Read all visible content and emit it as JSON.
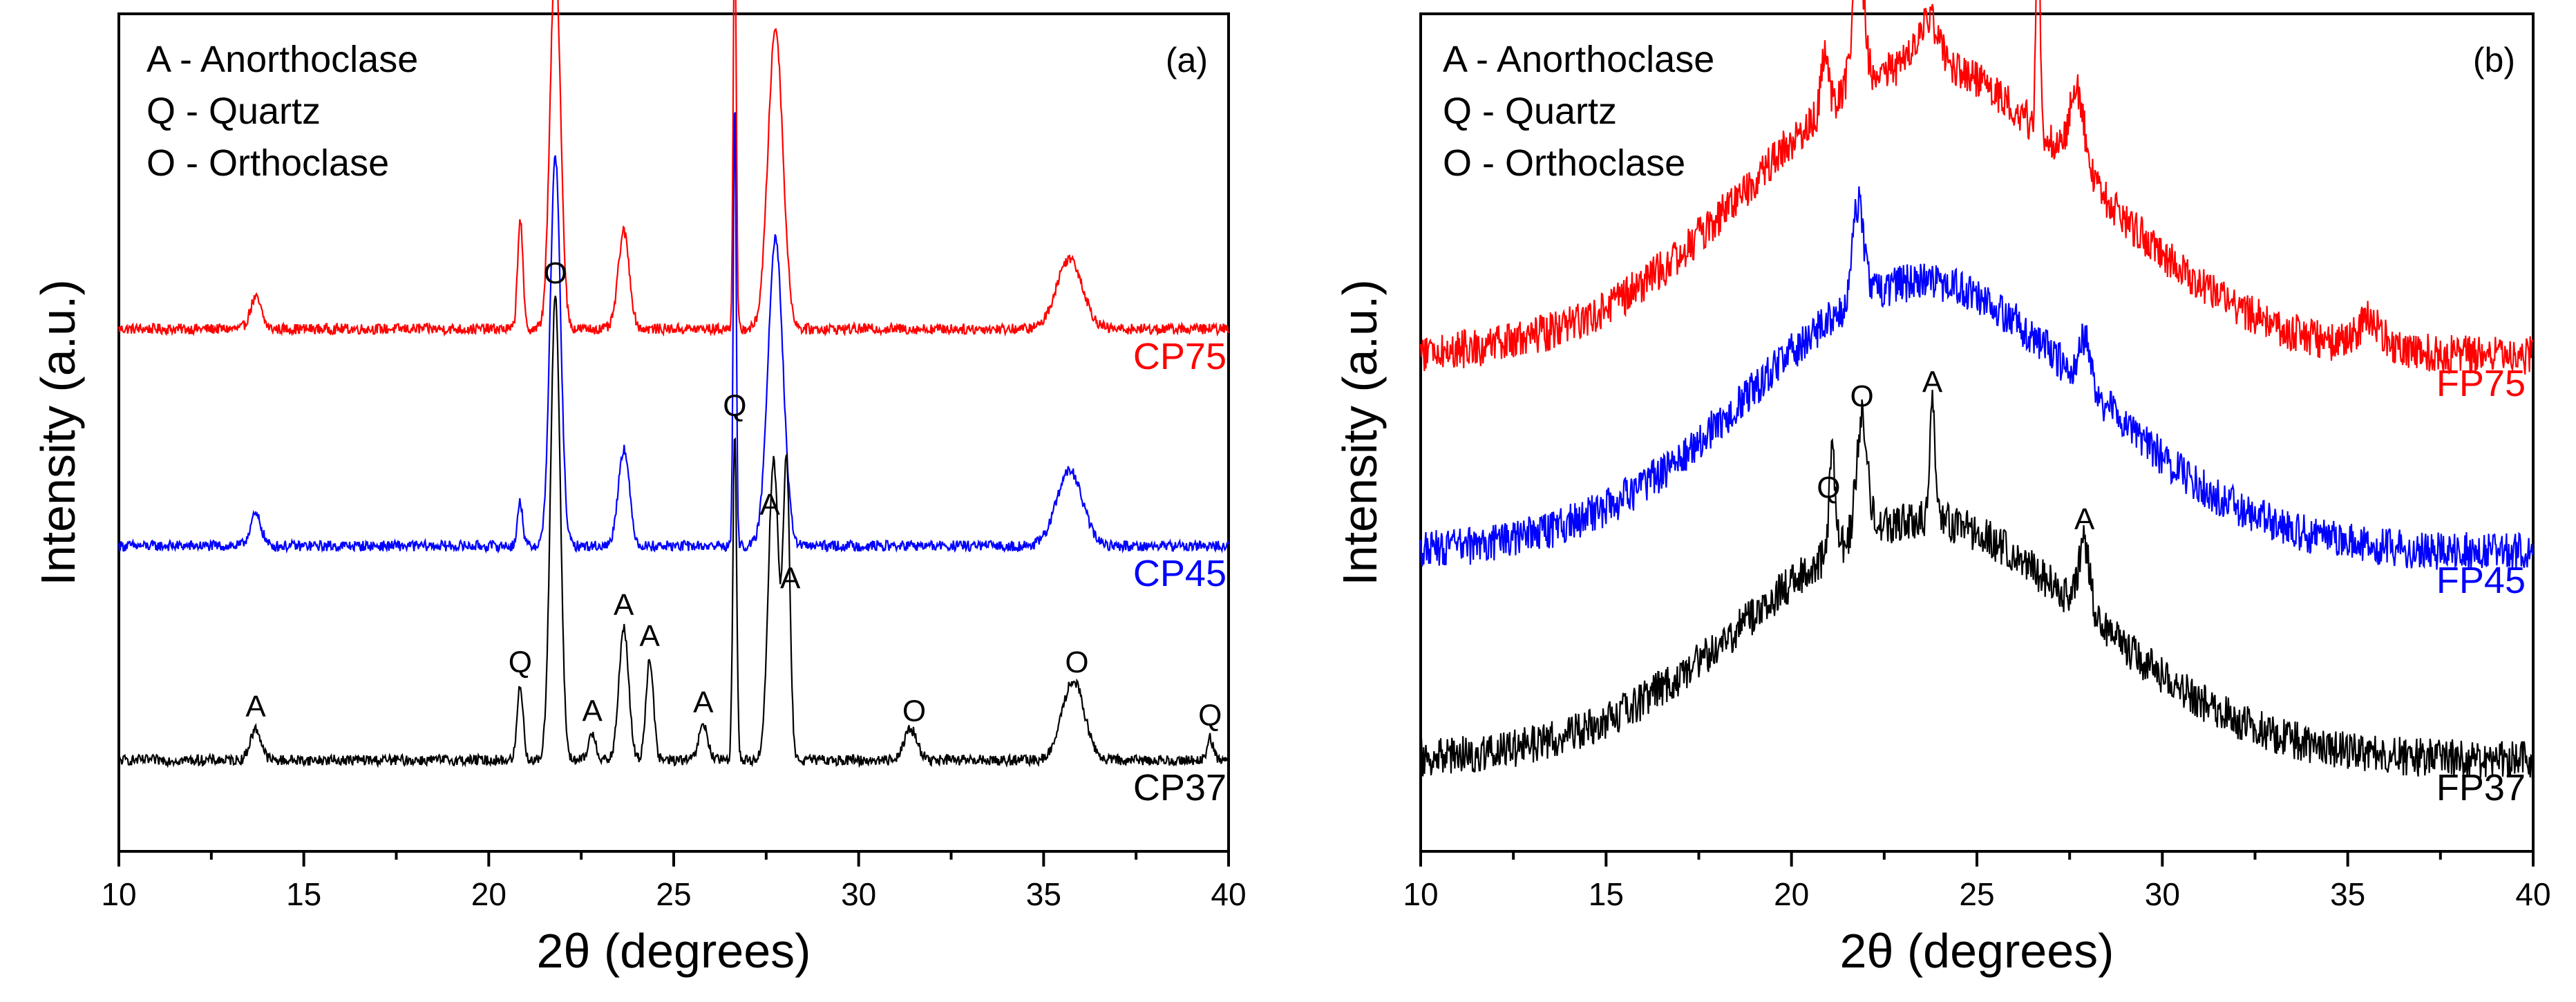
{
  "chart_data": [
    {
      "panel": "(a)",
      "type": "line",
      "xlabel": "2θ (degrees)",
      "ylabel": "Intensity (a.u.)",
      "xlim": [
        10,
        40
      ],
      "xticks": [
        10,
        15,
        20,
        25,
        30,
        35,
        40
      ],
      "legend": [
        "A - Anorthoclase",
        "Q - Quartz",
        "O - Orthoclase"
      ],
      "series": [
        {
          "name": "CP75",
          "color": "#ff0000",
          "baseline": 0.0,
          "offset": 2.05,
          "noise": 0.012,
          "peaks": [
            {
              "x": 13.7,
              "h": 0.07,
              "w": 0.15
            },
            {
              "x": 20.85,
              "h": 0.25,
              "w": 0.07
            },
            {
              "x": 21.8,
              "h": 0.85,
              "w": 0.14
            },
            {
              "x": 23.65,
              "h": 0.22,
              "w": 0.15
            },
            {
              "x": 26.65,
              "h": 0.95,
              "w": 0.04
            },
            {
              "x": 27.75,
              "h": 0.68,
              "w": 0.2
            },
            {
              "x": 35.7,
              "h": 0.16,
              "w": 0.35
            }
          ]
        },
        {
          "name": "CP45",
          "color": "#0000ff",
          "offset": 1.0,
          "noise": 0.012,
          "peaks": [
            {
              "x": 13.7,
              "h": 0.07,
              "w": 0.15
            },
            {
              "x": 20.85,
              "h": 0.1,
              "w": 0.07
            },
            {
              "x": 21.8,
              "h": 0.88,
              "w": 0.14
            },
            {
              "x": 23.65,
              "h": 0.22,
              "w": 0.15
            },
            {
              "x": 26.65,
              "h": 1.0,
              "w": 0.04
            },
            {
              "x": 27.75,
              "h": 0.7,
              "w": 0.2
            },
            {
              "x": 35.7,
              "h": 0.17,
              "w": 0.35
            }
          ]
        },
        {
          "name": "CP37",
          "color": "#000000",
          "offset": 0.0,
          "noise": 0.012,
          "peaks": [
            {
              "x": 13.7,
              "h": 0.07,
              "w": 0.15
            },
            {
              "x": 20.85,
              "h": 0.17,
              "w": 0.08
            },
            {
              "x": 21.8,
              "h": 1.05,
              "w": 0.13
            },
            {
              "x": 22.8,
              "h": 0.06,
              "w": 0.1
            },
            {
              "x": 23.65,
              "h": 0.3,
              "w": 0.13
            },
            {
              "x": 24.35,
              "h": 0.23,
              "w": 0.1
            },
            {
              "x": 25.8,
              "h": 0.08,
              "w": 0.12
            },
            {
              "x": 26.65,
              "h": 0.75,
              "w": 0.05
            },
            {
              "x": 27.7,
              "h": 0.68,
              "w": 0.14
            },
            {
              "x": 28.05,
              "h": 0.66,
              "w": 0.09
            },
            {
              "x": 31.4,
              "h": 0.07,
              "w": 0.18
            },
            {
              "x": 35.8,
              "h": 0.18,
              "w": 0.3
            },
            {
              "x": 39.5,
              "h": 0.05,
              "w": 0.08
            }
          ]
        }
      ],
      "peak_labels": [
        {
          "label": "A",
          "x": 13.7
        },
        {
          "label": "Q",
          "x": 20.85
        },
        {
          "label": "O",
          "x": 21.8
        },
        {
          "label": "A",
          "x": 22.8
        },
        {
          "label": "A",
          "x": 23.65
        },
        {
          "label": "A",
          "x": 24.35
        },
        {
          "label": "A",
          "x": 25.8
        },
        {
          "label": "Q",
          "x": 26.65
        },
        {
          "label": "A",
          "x": 27.6
        },
        {
          "label": "A",
          "x": 28.15
        },
        {
          "label": "O",
          "x": 31.5
        },
        {
          "label": "O",
          "x": 35.9
        },
        {
          "label": "Q",
          "x": 39.5
        }
      ]
    },
    {
      "panel": "(b)",
      "type": "line",
      "xlabel": "2θ (degrees)",
      "ylabel": "Intensity (a.u.)",
      "xlim": [
        10,
        40
      ],
      "xticks": [
        10,
        15,
        20,
        25,
        30,
        35,
        40
      ],
      "legend": [
        "A - Anorthoclase",
        "Q - Quartz",
        "O - Orthoclase"
      ],
      "series": [
        {
          "name": "FP75",
          "color": "#ff0000",
          "offset": 1.9,
          "noise": 0.05,
          "hump_center": 23.5,
          "hump_height": 0.75,
          "hump_width": 4.5,
          "peaks": [
            {
              "x": 20.9,
              "h": 0.15,
              "w": 0.1
            },
            {
              "x": 21.8,
              "h": 0.35,
              "w": 0.15
            },
            {
              "x": 23.7,
              "h": 0.12,
              "w": 0.3
            },
            {
              "x": 26.65,
              "h": 0.65,
              "w": 0.05
            },
            {
              "x": 27.7,
              "h": 0.2,
              "w": 0.2
            },
            {
              "x": 35.6,
              "h": 0.08,
              "w": 0.3
            }
          ]
        },
        {
          "name": "FP45",
          "color": "#0000ff",
          "offset": 0.95,
          "noise": 0.05,
          "hump_center": 23.5,
          "hump_height": 0.7,
          "hump_width": 4.5,
          "peaks": [
            {
              "x": 21.8,
              "h": 0.25,
              "w": 0.15
            },
            {
              "x": 27.9,
              "h": 0.12,
              "w": 0.15
            }
          ]
        },
        {
          "name": "FP37",
          "color": "#000000",
          "offset": 0.0,
          "noise": 0.05,
          "hump_center": 23.5,
          "hump_height": 0.62,
          "hump_width": 4.5,
          "peaks": [
            {
              "x": 21.1,
              "h": 0.25,
              "w": 0.08
            },
            {
              "x": 21.9,
              "h": 0.3,
              "w": 0.15
            },
            {
              "x": 23.8,
              "h": 0.3,
              "w": 0.07
            },
            {
              "x": 27.9,
              "h": 0.18,
              "w": 0.15
            }
          ]
        }
      ],
      "peak_labels": [
        {
          "label": "Q",
          "x": 21.0
        },
        {
          "label": "O",
          "x": 21.9
        },
        {
          "label": "A",
          "x": 23.8
        },
        {
          "label": "A",
          "x": 27.9
        }
      ]
    }
  ]
}
